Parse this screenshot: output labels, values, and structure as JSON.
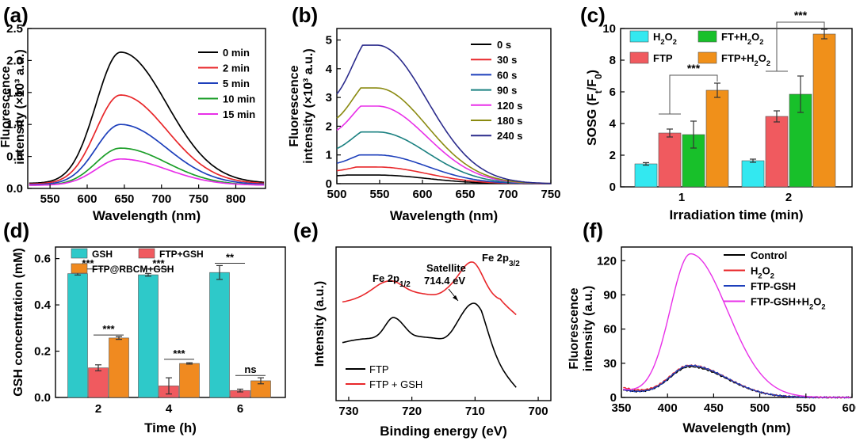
{
  "figure": {
    "panel_labels": [
      "(a)",
      "(b)",
      "(c)",
      "(d)",
      "(e)",
      "(f)"
    ]
  },
  "chart_data": [
    {
      "panel": "(a)",
      "type": "line",
      "xlabel": "Wavelength (nm)",
      "ylabel": [
        "Fluorescence",
        "intensity (×10³ a.u.)"
      ],
      "xlim": [
        520,
        840
      ],
      "ylim": [
        0,
        2.5
      ],
      "xticks": [
        550,
        600,
        650,
        700,
        750,
        800
      ],
      "yticks": [
        0.0,
        0.5,
        1.0,
        1.5,
        2.0,
        2.5
      ],
      "ytick_labels": [
        "0.0",
        "0.5",
        "1.0",
        "1.5",
        "2.0",
        "2.5"
      ],
      "legend_position": "top-right",
      "peak_x": 645,
      "series": [
        {
          "name": "0 min",
          "color": "#000000",
          "peak": 2.13,
          "baseline": 0.08
        },
        {
          "name": "2 min",
          "color": "#e8272a",
          "peak": 1.46,
          "baseline": 0.07
        },
        {
          "name": "5 min",
          "color": "#1d3fbb",
          "peak": 1.0,
          "baseline": 0.06
        },
        {
          "name": "10 min",
          "color": "#1b9e28",
          "peak": 0.63,
          "baseline": 0.05
        },
        {
          "name": "15 min",
          "color": "#e830e8",
          "peak": 0.46,
          "baseline": 0.05
        }
      ]
    },
    {
      "panel": "(b)",
      "type": "line",
      "xlabel": "Wavelength (nm)",
      "ylabel": [
        "Fluorescence",
        "intensity (×10³ a.u.)"
      ],
      "xlim": [
        500,
        750
      ],
      "ylim": [
        0,
        5.4
      ],
      "xticks": [
        500,
        550,
        600,
        650,
        700,
        750
      ],
      "yticks": [
        0,
        1,
        2,
        3,
        4,
        5
      ],
      "ytick_labels": [
        "0",
        "1",
        "2",
        "3",
        "4",
        "5"
      ],
      "legend_position": "top-right",
      "peak_x": 547,
      "series": [
        {
          "name": "0 s",
          "color": "#000000",
          "peak": 0.3,
          "start": 0.2
        },
        {
          "name": "30 s",
          "color": "#e8272a",
          "peak": 0.58,
          "start": 0.3
        },
        {
          "name": "60 s",
          "color": "#1d3fbb",
          "peak": 1.0,
          "start": 0.45
        },
        {
          "name": "90 s",
          "color": "#1a8080",
          "peak": 1.8,
          "start": 0.75
        },
        {
          "name": "120 s",
          "color": "#e830e8",
          "peak": 2.7,
          "start": 1.15
        },
        {
          "name": "180 s",
          "color": "#8a8a10",
          "peak": 3.33,
          "start": 1.4
        },
        {
          "name": "240 s",
          "color": "#2b2b8c",
          "peak": 4.82,
          "start": 1.85
        }
      ]
    },
    {
      "panel": "(c)",
      "type": "bar",
      "xlabel": "Irradiation time (min)",
      "ylabel": "SOSG (Ft/F0)",
      "categories": [
        "1",
        "2"
      ],
      "ylim": [
        0,
        10
      ],
      "yticks": [
        0,
        2,
        4,
        6,
        8,
        10
      ],
      "legend_position": "top-left",
      "series": [
        {
          "name": "H2O2",
          "color": "#33e8f0",
          "values": [
            1.45,
            1.65
          ],
          "errors": [
            0.08,
            0.1
          ]
        },
        {
          "name": "FTP",
          "color": "#f05a5f",
          "values": [
            3.4,
            4.45
          ],
          "errors": [
            0.25,
            0.35
          ]
        },
        {
          "name": "FT+H2O2",
          "color": "#18c02a",
          "values": [
            3.3,
            5.85
          ],
          "errors": [
            0.85,
            1.15
          ]
        },
        {
          "name": "FTP+H2O2",
          "color": "#f0901a",
          "values": [
            6.1,
            9.65
          ],
          "errors": [
            0.45,
            0.3
          ]
        }
      ],
      "annotations": [
        "***",
        "***"
      ]
    },
    {
      "panel": "(d)",
      "type": "bar",
      "xlabel": "Time (h)",
      "ylabel": "GSH concentration (mM)",
      "categories": [
        "2",
        "4",
        "6"
      ],
      "ylim": [
        0,
        0.65
      ],
      "yticks": [
        0.0,
        0.2,
        0.4,
        0.6
      ],
      "ytick_labels": [
        "0.0",
        "0.2",
        "0.4",
        "0.6"
      ],
      "legend_position": "top",
      "series": [
        {
          "name": "GSH",
          "color": "#2ec9c9",
          "values": [
            0.535,
            0.53,
            0.54
          ],
          "errors": [
            0.006,
            0.006,
            0.03
          ]
        },
        {
          "name": "FTP+GSH",
          "color": "#f05a5f",
          "values": [
            0.128,
            0.05,
            0.03
          ],
          "errors": [
            0.013,
            0.035,
            0.006
          ]
        },
        {
          "name": "FTP@RBCM+GSH",
          "color": "#f08a20",
          "values": [
            0.257,
            0.147,
            0.072
          ],
          "errors": [
            0.006,
            0.003,
            0.013
          ]
        }
      ],
      "annotations": [
        "***",
        "***",
        "***",
        "***",
        "**",
        "ns"
      ]
    },
    {
      "panel": "(e)",
      "type": "line",
      "xlabel": "Binding energy (eV)",
      "ylabel": "Intensity (a.u.)",
      "xlim": [
        732,
        698
      ],
      "xticks": [
        730,
        720,
        710,
        700
      ],
      "legend_position": "bottom-left",
      "annotations": [
        "Fe 2p1/2",
        "Satellite",
        "714.4 eV",
        "Fe 2p3/2"
      ],
      "series": [
        {
          "name": "FTP",
          "color": "#000000"
        },
        {
          "name": "FTP + GSH",
          "color": "#e8272a"
        }
      ]
    },
    {
      "panel": "(f)",
      "type": "line",
      "xlabel": "Wavelength (nm)",
      "ylabel": [
        "Fluorescence",
        "intensity (a.u.)"
      ],
      "xlim": [
        350,
        600
      ],
      "ylim": [
        0,
        132
      ],
      "xticks": [
        350,
        400,
        450,
        500,
        550,
        600
      ],
      "yticks": [
        0,
        30,
        60,
        90,
        120
      ],
      "legend_position": "top-right",
      "peak_x": 425,
      "series": [
        {
          "name": "Control",
          "color": "#000000",
          "peak": 26
        },
        {
          "name": "H2O2",
          "color": "#e8272a",
          "peak": 27
        },
        {
          "name": "FTP-GSH",
          "color": "#1d3fbb",
          "peak": 27
        },
        {
          "name": "FTP-GSH+H2O2",
          "color": "#e830e8",
          "peak": 125
        }
      ]
    }
  ]
}
